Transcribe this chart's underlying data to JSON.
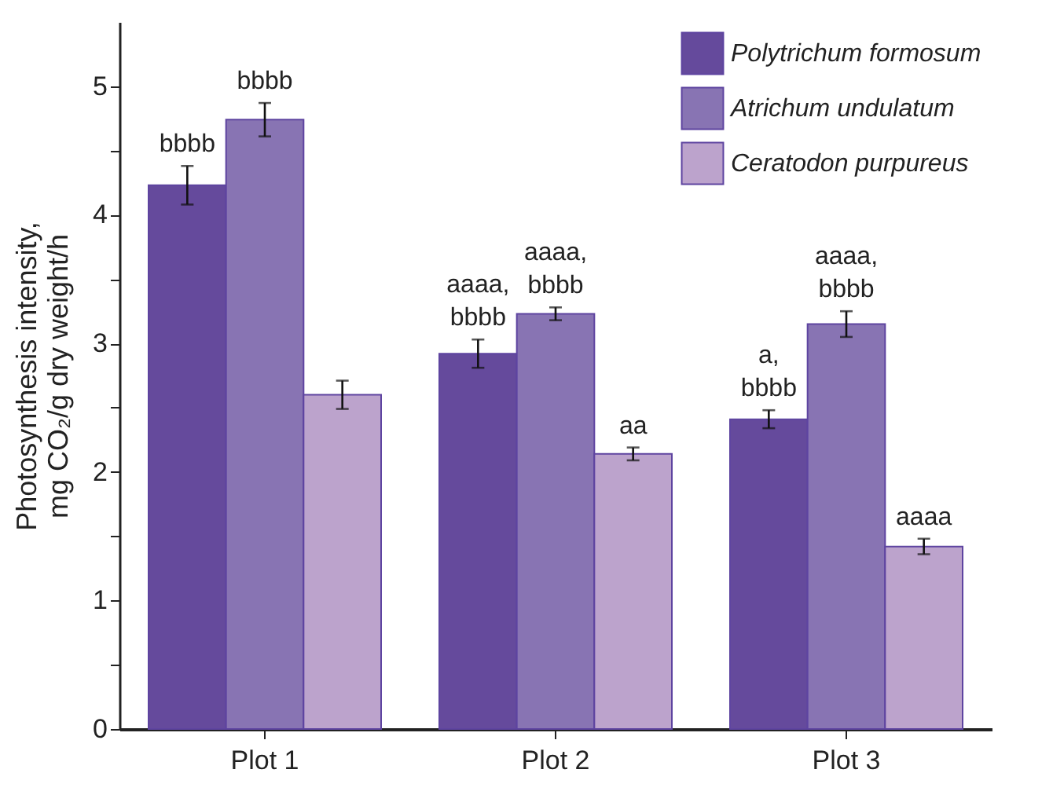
{
  "chart_data": {
    "type": "bar",
    "ylabel": "Photosynthesis intensity,\nmg CO₂/g dry weight/h",
    "categories": [
      "Plot 1",
      "Plot 2",
      "Plot 3"
    ],
    "series": [
      {
        "name": "Polytrichum formosum",
        "color": "#654a9c",
        "values": [
          4.23,
          2.92,
          2.41
        ],
        "errors": [
          0.15,
          0.11,
          0.07
        ],
        "value_labels": [
          "bbbb",
          "aaaa,\nbbbb",
          "a,\nbbbb"
        ]
      },
      {
        "name": "Atrichum undulatum",
        "color": "#8874b3",
        "values": [
          4.74,
          3.23,
          3.15
        ],
        "errors": [
          0.13,
          0.05,
          0.1
        ],
        "value_labels": [
          "bbbb",
          "aaaa,\nbbbb",
          "aaaa,\nbbbb"
        ]
      },
      {
        "name": "Ceratodon purpureus",
        "color": "#bca3cc",
        "values": [
          2.6,
          2.14,
          1.42
        ],
        "errors": [
          0.11,
          0.05,
          0.06
        ],
        "value_labels": [
          null,
          "aa",
          "aaaa"
        ]
      }
    ],
    "ylim": [
      0,
      5.5
    ],
    "yticks": [
      0,
      {
        "value": 0.5,
        "label": null
      },
      1,
      {
        "value": 1.5,
        "label": null
      },
      2,
      {
        "value": 2.5,
        "label": null
      },
      3,
      {
        "value": 3.5,
        "label": null
      },
      4,
      {
        "value": 4.5,
        "label": null
      },
      5
    ],
    "grid": false,
    "legend": "top right"
  }
}
